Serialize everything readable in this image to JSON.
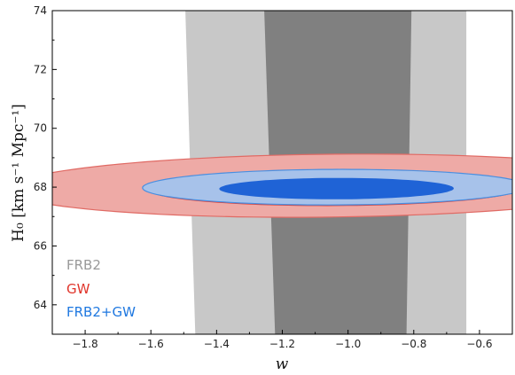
{
  "chart_data": {
    "type": "contour",
    "xlabel": "w",
    "ylabel": "H₀ [km s⁻¹ Mpc⁻¹]",
    "xlim": [
      -1.9,
      -0.5
    ],
    "ylim": [
      63,
      74
    ],
    "xticks": [
      -1.8,
      -1.6,
      -1.4,
      -1.2,
      -1.0,
      -0.8,
      -0.6
    ],
    "yticks": [
      64,
      66,
      68,
      70,
      72,
      74
    ],
    "xtick_labels": [
      "−1.8",
      "−1.6",
      "−1.4",
      "−1.2",
      "−1.0",
      "−0.8",
      "−0.6"
    ],
    "ytick_labels": [
      "64",
      "66",
      "68",
      "70",
      "72",
      "74"
    ],
    "legend_position": "bottom-left",
    "legend": [
      {
        "label": "FRB2",
        "color": "#999999"
      },
      {
        "label": "GW",
        "color": "#e0342a"
      },
      {
        "label": "FRB2+GW",
        "color": "#1f78e0"
      }
    ],
    "series": [
      {
        "name": "FRB2",
        "contours": [
          {
            "level": "95%",
            "color": "#c8c8c8",
            "polygon": [
              [
                -1.495,
                74
              ],
              [
                -1.465,
                63
              ],
              [
                -0.64,
                63
              ],
              [
                -0.64,
                74
              ]
            ]
          },
          {
            "level": "68%",
            "color": "#808080",
            "polygon": [
              [
                -1.255,
                74
              ],
              [
                -1.222,
                63
              ],
              [
                -0.822,
                63
              ],
              [
                -0.807,
                74
              ]
            ]
          }
        ]
      },
      {
        "name": "GW",
        "contours": [
          {
            "level": "95%",
            "color": "#eeaaa6",
            "edge": "#e06a64",
            "center": [
              -1.06,
              68.05
            ],
            "angle_deg": 25,
            "rx": 0.95,
            "ry": 1.1
          },
          {
            "level": "68%",
            "color": "#dd3e36",
            "center": [
              -1.04,
              67.95
            ],
            "angle_deg": 25,
            "rx": 0.565,
            "ry": 0.6
          }
        ]
      },
      {
        "name": "FRB2+GW",
        "contours": [
          {
            "level": "95%",
            "color": "#a7c2ea",
            "edge": "#4a8fe0",
            "center": [
              -1.04,
              68.0
            ],
            "angle_deg": 25,
            "rx": 0.58,
            "ry": 0.61
          },
          {
            "level": "68%",
            "color": "#1f63d6",
            "center": [
              -1.035,
              67.95
            ],
            "angle_deg": 25,
            "rx": 0.355,
            "ry": 0.365
          }
        ]
      }
    ]
  }
}
